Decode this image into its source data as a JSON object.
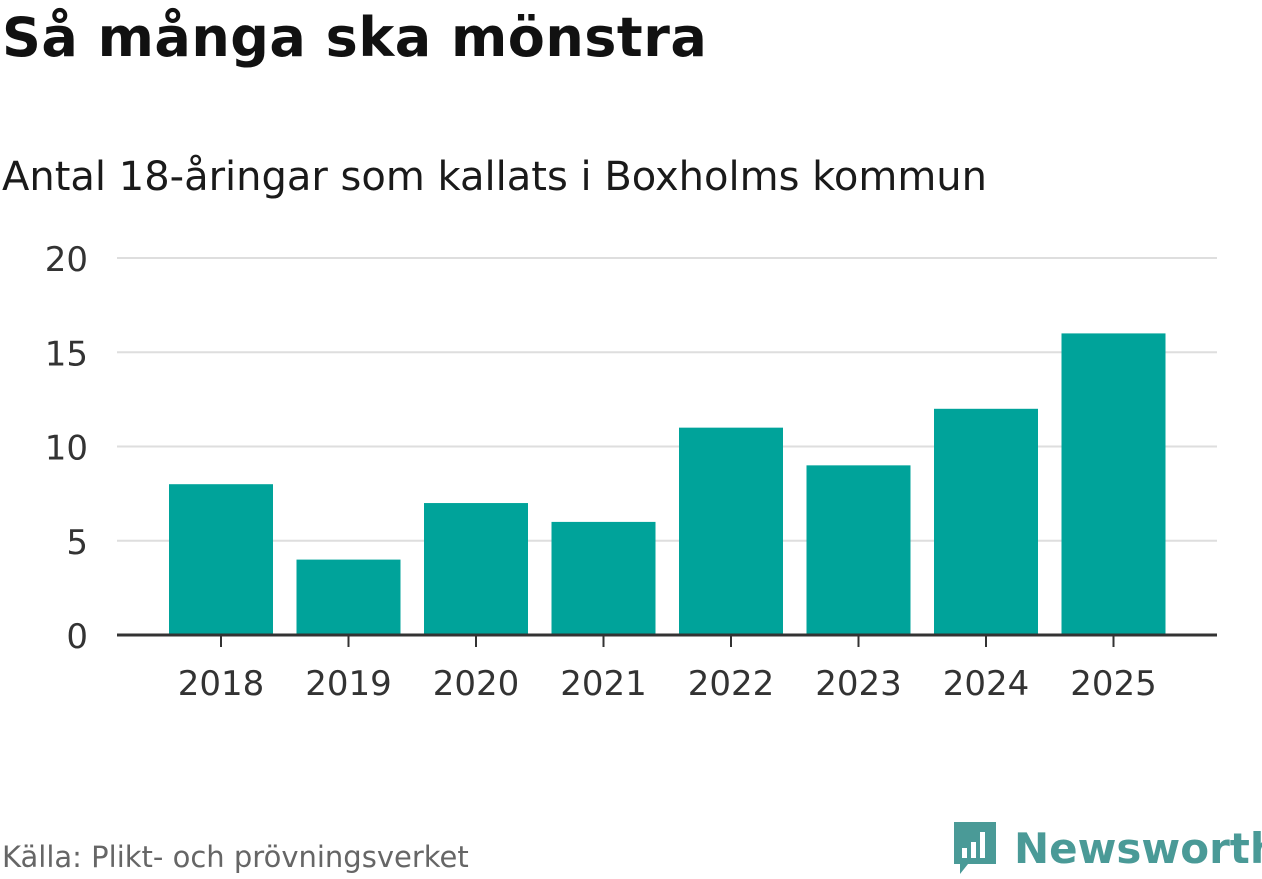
{
  "title": "Så många ska mönstra",
  "subtitle": "Antal 18-åringar som kallats i Boxholms kommun",
  "source": "Källa: Plikt- och prövningsverket",
  "brand": "Newsworthy",
  "colors": {
    "bar": "#00a39a",
    "grid": "#dedede",
    "axis": "#333333",
    "brand": "#4a9a97"
  },
  "chart_data": {
    "type": "bar",
    "categories": [
      "2018",
      "2019",
      "2020",
      "2021",
      "2022",
      "2023",
      "2024",
      "2025"
    ],
    "values": [
      8,
      4,
      7,
      6,
      11,
      9,
      12,
      16
    ],
    "ylim": [
      0,
      20
    ],
    "yticks": [
      0,
      5,
      10,
      15,
      20
    ],
    "grid": true
  }
}
